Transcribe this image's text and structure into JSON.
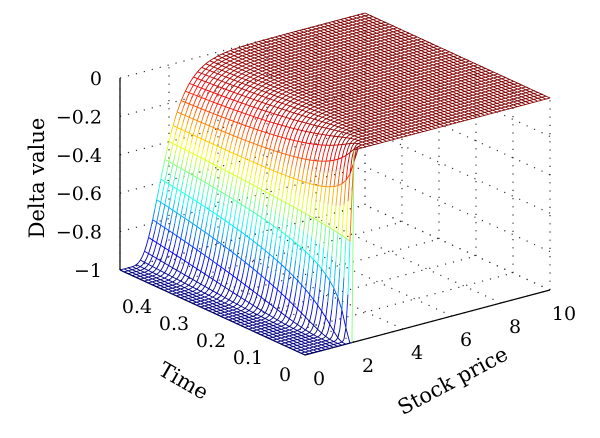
{
  "chart_data": {
    "type": "surface",
    "title": "",
    "xlabel": "Stock price",
    "ylabel": "Time",
    "zlabel": "Delta value",
    "xlim": [
      0,
      10
    ],
    "ylim": [
      0,
      0.5
    ],
    "zlim": [
      -1,
      0
    ],
    "x_ticks": [
      "0",
      "2",
      "4",
      "6",
      "8",
      "10"
    ],
    "y_ticks": [
      "0",
      "0.1",
      "0.2",
      "0.3",
      "0.4"
    ],
    "z_ticks": [
      "0",
      "−0.2",
      "−0.4",
      "−0.6",
      "−0.8",
      "−1"
    ],
    "grid": true,
    "colormap": "jet",
    "surface_samples": {
      "stock_price": [
        0,
        1,
        1.5,
        2,
        2.5,
        3,
        4,
        6,
        8,
        10
      ],
      "delta_at_time_0_5": [
        -1,
        -0.97,
        -0.65,
        -0.2,
        -0.04,
        -0.01,
        0,
        0,
        0,
        0
      ],
      "delta_at_time_0_1": [
        -1,
        -1,
        -0.99,
        -0.7,
        -0.2,
        -0.03,
        0,
        0,
        0,
        0
      ],
      "delta_at_time_0": [
        -1,
        -1,
        -1,
        -1,
        0,
        0,
        0,
        0,
        0,
        0
      ]
    }
  }
}
